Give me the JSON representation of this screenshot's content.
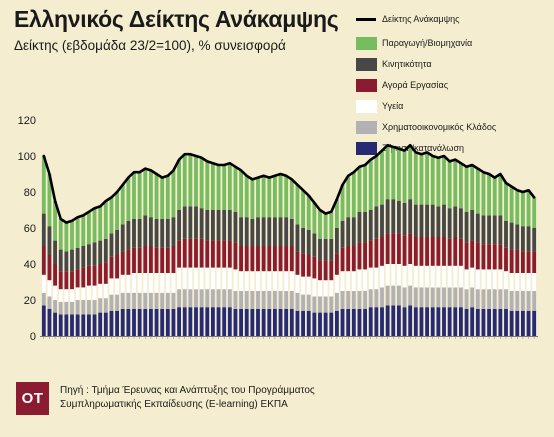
{
  "header": {
    "title": "Ελληνικός Δείκτης Ανάκαμψης",
    "subtitle": "Δείκτης (εβδομάδα 23/2=100), % συνεισφορά"
  },
  "footer": {
    "logo_text": "OT",
    "source_line1": "Πηγή : Τμήμα Έρευνας και Ανάπτυξης του Προγράμματος",
    "source_line2": "Συμπληρωματικής Εκπαίδευσης (E-learning) ΕΚΠΑ"
  },
  "chart_data": {
    "type": "bar",
    "stacked": true,
    "ylim": [
      0,
      120
    ],
    "yticks": [
      0,
      20,
      40,
      60,
      80,
      100,
      120
    ],
    "ytick_labels": [
      "0",
      "20",
      "40",
      "60",
      "80",
      "100",
      "120"
    ],
    "grid": false,
    "legend_position": "top-right",
    "index_line": {
      "name": "Δείκτης Ανάκαμψης",
      "color": "#000000",
      "values": [
        100,
        90,
        75,
        65,
        63,
        64,
        66,
        67,
        69,
        71,
        72,
        75,
        77,
        80,
        84,
        88,
        91,
        91,
        93,
        92,
        90,
        88,
        89,
        92,
        98,
        101,
        101,
        100,
        99,
        97,
        96,
        95,
        95,
        96,
        94,
        92,
        89,
        87,
        88,
        89,
        88,
        89,
        90,
        89,
        87,
        84,
        81,
        78,
        74,
        70,
        68,
        69,
        76,
        84,
        89,
        91,
        94,
        95,
        98,
        100,
        103,
        106,
        105,
        104,
        103,
        106,
        102,
        101,
        102,
        100,
        99,
        100,
        97,
        98,
        96,
        94,
        95,
        93,
        91,
        90,
        88,
        90,
        85,
        83,
        81,
        80,
        81,
        77
      ]
    },
    "series": [
      {
        "name": "Ζήτηση/κατανάλωση",
        "color": "#262a73",
        "values": [
          17,
          15,
          13,
          12,
          12,
          12,
          12,
          12,
          12,
          12,
          13,
          13,
          14,
          14,
          15,
          15,
          15,
          15,
          15,
          15,
          15,
          15,
          15,
          15,
          16,
          16,
          16,
          16,
          16,
          16,
          16,
          16,
          16,
          16,
          15,
          15,
          15,
          15,
          15,
          15,
          15,
          15,
          15,
          15,
          15,
          14,
          14,
          14,
          13,
          13,
          13,
          13,
          14,
          15,
          15,
          15,
          15,
          15,
          16,
          16,
          16,
          17,
          17,
          17,
          16,
          17,
          16,
          16,
          16,
          16,
          16,
          16,
          16,
          16,
          16,
          15,
          16,
          15,
          15,
          15,
          15,
          15,
          15,
          14,
          14,
          14,
          14,
          14
        ]
      },
      {
        "name": "Χρηματοοικονομικός Κλάδος",
        "color": "#b2b2b4",
        "values": [
          7,
          7,
          7,
          7,
          7,
          7,
          8,
          8,
          8,
          8,
          8,
          8,
          9,
          9,
          9,
          9,
          9,
          9,
          9,
          9,
          9,
          9,
          9,
          9,
          10,
          10,
          10,
          10,
          10,
          10,
          10,
          10,
          10,
          10,
          10,
          10,
          10,
          10,
          10,
          10,
          10,
          10,
          10,
          10,
          10,
          10,
          9,
          9,
          9,
          9,
          9,
          9,
          10,
          10,
          10,
          10,
          10,
          10,
          10,
          10,
          11,
          11,
          11,
          11,
          11,
          11,
          11,
          11,
          11,
          11,
          11,
          11,
          11,
          11,
          11,
          11,
          11,
          11,
          11,
          11,
          11,
          11,
          11,
          11,
          11,
          11,
          11,
          11
        ]
      },
      {
        "name": "Υγεία",
        "color": "#ffffff",
        "values": [
          10,
          9,
          8,
          7,
          7,
          7,
          7,
          7,
          8,
          8,
          8,
          8,
          9,
          9,
          10,
          10,
          11,
          11,
          11,
          11,
          11,
          11,
          11,
          11,
          12,
          12,
          12,
          12,
          12,
          12,
          12,
          12,
          12,
          12,
          12,
          11,
          11,
          11,
          11,
          11,
          11,
          11,
          11,
          11,
          11,
          10,
          10,
          10,
          10,
          9,
          9,
          9,
          10,
          11,
          11,
          11,
          12,
          12,
          12,
          12,
          12,
          12,
          12,
          12,
          12,
          12,
          12,
          12,
          12,
          12,
          12,
          12,
          12,
          12,
          12,
          11,
          11,
          11,
          11,
          11,
          11,
          11,
          10,
          10,
          10,
          10,
          10,
          10
        ]
      },
      {
        "name": "Αγορά Εργασίας",
        "color": "#8a1b30",
        "values": [
          16,
          14,
          12,
          10,
          10,
          10,
          10,
          11,
          11,
          11,
          11,
          12,
          12,
          13,
          13,
          14,
          14,
          14,
          15,
          15,
          14,
          14,
          14,
          15,
          15,
          16,
          16,
          16,
          16,
          15,
          15,
          15,
          15,
          15,
          15,
          14,
          14,
          14,
          14,
          14,
          14,
          14,
          14,
          14,
          14,
          13,
          13,
          12,
          12,
          11,
          11,
          11,
          12,
          13,
          14,
          14,
          15,
          15,
          15,
          16,
          16,
          17,
          17,
          17,
          17,
          17,
          16,
          16,
          16,
          16,
          16,
          16,
          15,
          16,
          15,
          15,
          15,
          15,
          14,
          14,
          14,
          14,
          13,
          13,
          13,
          12,
          12,
          12
        ]
      },
      {
        "name": "Κινητικότητα",
        "color": "#474747",
        "values": [
          18,
          16,
          13,
          12,
          11,
          12,
          12,
          12,
          12,
          13,
          13,
          13,
          13,
          14,
          15,
          16,
          16,
          16,
          17,
          16,
          16,
          16,
          16,
          16,
          17,
          18,
          18,
          18,
          17,
          17,
          17,
          17,
          17,
          17,
          17,
          16,
          16,
          15,
          16,
          16,
          16,
          16,
          16,
          16,
          15,
          15,
          14,
          14,
          13,
          12,
          12,
          12,
          14,
          15,
          16,
          16,
          17,
          17,
          17,
          18,
          18,
          19,
          19,
          18,
          18,
          19,
          18,
          18,
          18,
          18,
          17,
          18,
          17,
          17,
          17,
          17,
          17,
          16,
          16,
          16,
          16,
          16,
          15,
          15,
          14,
          14,
          14,
          13
        ]
      },
      {
        "name": "Παραγωγή/Βιομηχανία",
        "color": "#77bc5f",
        "values": [
          32,
          29,
          22,
          17,
          16,
          16,
          17,
          17,
          18,
          19,
          19,
          21,
          20,
          21,
          22,
          24,
          26,
          26,
          26,
          26,
          25,
          23,
          24,
          26,
          28,
          29,
          29,
          28,
          28,
          27,
          26,
          25,
          25,
          26,
          25,
          26,
          23,
          22,
          22,
          23,
          22,
          23,
          24,
          23,
          22,
          22,
          21,
          19,
          17,
          16,
          14,
          15,
          16,
          20,
          23,
          25,
          25,
          26,
          28,
          28,
          30,
          30,
          29,
          29,
          29,
          30,
          29,
          28,
          29,
          27,
          27,
          27,
          26,
          26,
          25,
          25,
          25,
          25,
          24,
          23,
          21,
          23,
          21,
          20,
          19,
          19,
          20,
          17
        ]
      }
    ]
  }
}
